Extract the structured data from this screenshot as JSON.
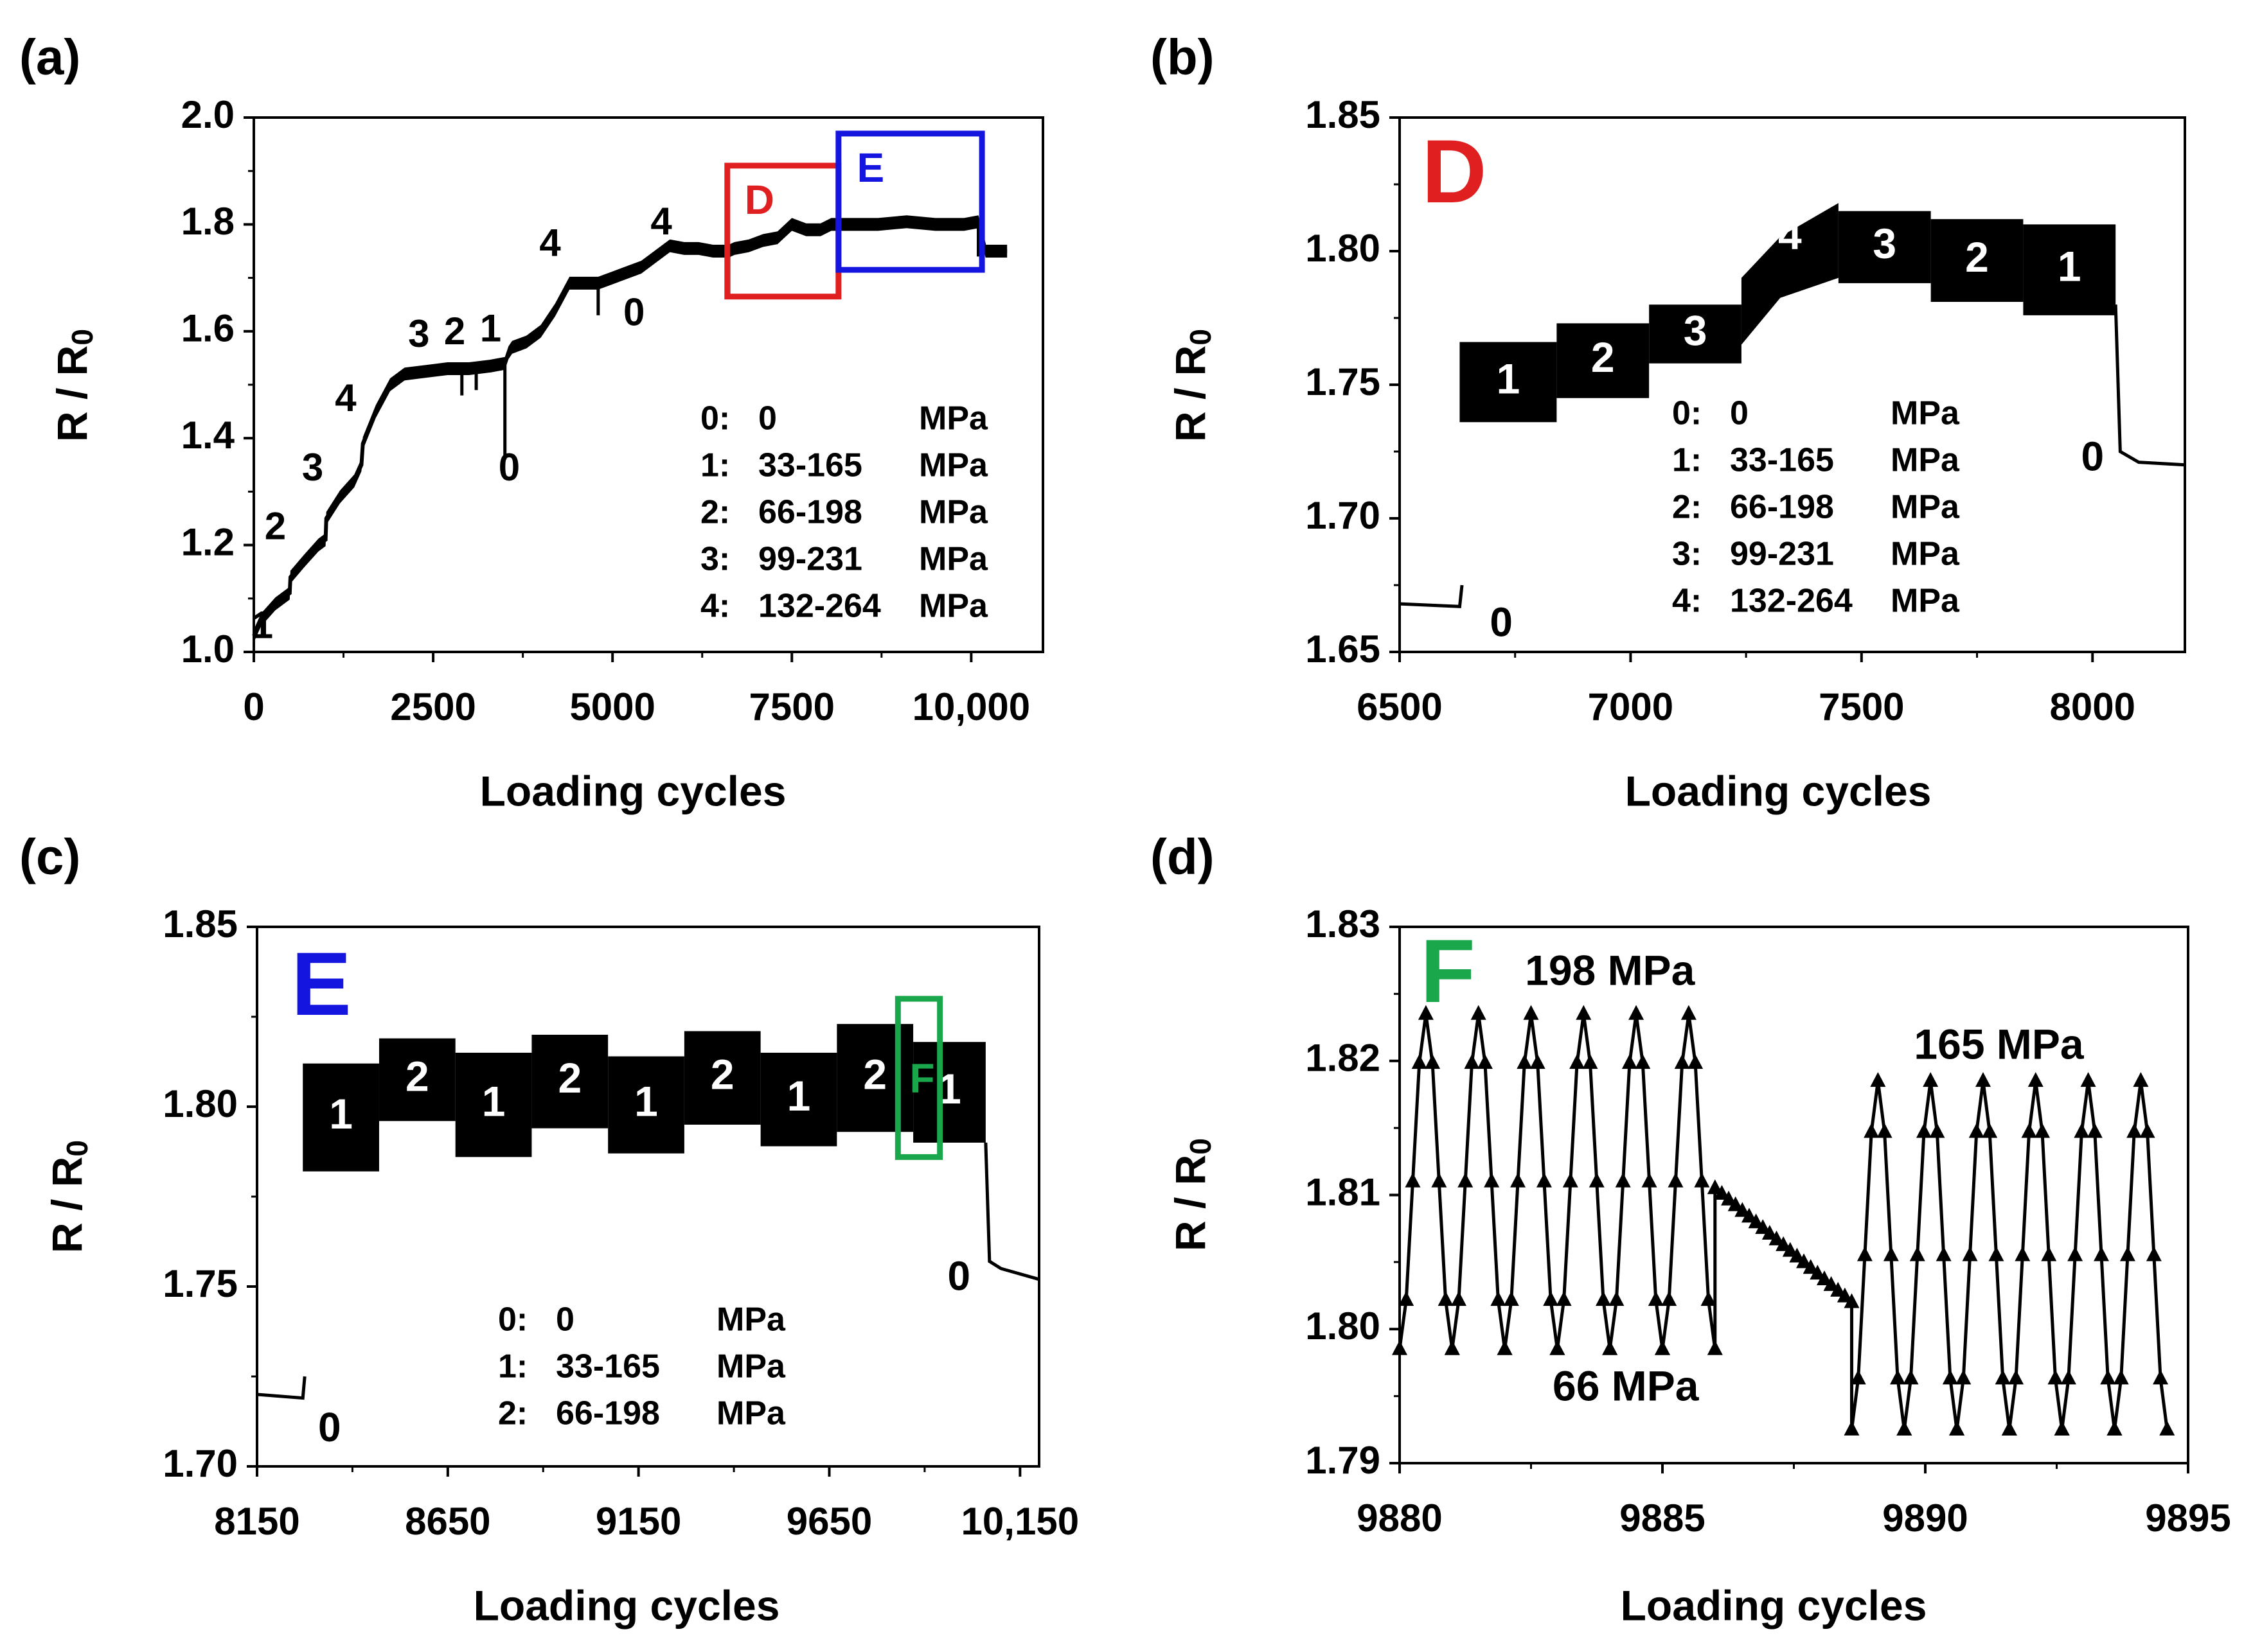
{
  "chart_data": [
    {
      "panel": "(a)",
      "type": "line",
      "title": "",
      "xlabel": "Loading cycles",
      "ylabel": "R / R0",
      "xlim": [
        0,
        11000
      ],
      "ylim": [
        1.0,
        2.0
      ],
      "xticks": [
        0,
        2500,
        5000,
        7500,
        10000
      ],
      "xtick_labels": [
        "0",
        "2500",
        "5000",
        "7500",
        "10,000"
      ],
      "yticks": [
        1.0,
        1.2,
        1.4,
        1.6,
        1.8,
        2.0
      ],
      "ytick_labels": [
        "1.0",
        "1.2",
        "1.4",
        "1.6",
        "1.8",
        "2.0"
      ],
      "series": [
        {
          "name": "R/R0 trace",
          "x": [
            0,
            100,
            300,
            500,
            510,
            700,
            900,
            1000,
            1010,
            1200,
            1400,
            1500,
            1520,
            1700,
            1900,
            2100,
            2400,
            2700,
            3000,
            3300,
            3500,
            3550,
            3600,
            3800,
            4000,
            4200,
            4400,
            4600,
            4800,
            5000,
            5200,
            5400,
            5600,
            5800,
            6000,
            6200,
            6400,
            6620,
            6700,
            6900,
            7100,
            7300,
            7500,
            7700,
            7900,
            8050,
            8300,
            8700,
            9100,
            9500,
            9900,
            10100,
            10200,
            10500
          ],
          "y": [
            1.03,
            1.06,
            1.09,
            1.11,
            1.14,
            1.17,
            1.2,
            1.21,
            1.25,
            1.29,
            1.32,
            1.35,
            1.39,
            1.45,
            1.5,
            1.52,
            1.525,
            1.53,
            1.53,
            1.535,
            1.54,
            1.56,
            1.57,
            1.58,
            1.6,
            1.64,
            1.69,
            1.69,
            1.69,
            1.7,
            1.71,
            1.72,
            1.74,
            1.76,
            1.755,
            1.755,
            1.75,
            1.75,
            1.755,
            1.76,
            1.77,
            1.775,
            1.8,
            1.79,
            1.79,
            1.8,
            1.8,
            1.8,
            1.805,
            1.8,
            1.8,
            1.805,
            1.75,
            1.75
          ]
        }
      ],
      "band_half_width": 0.012,
      "annotations": [
        {
          "text": "1",
          "x": 120,
          "y": 1.045
        },
        {
          "text": "2",
          "x": 300,
          "y": 1.23
        },
        {
          "text": "3",
          "x": 820,
          "y": 1.34
        },
        {
          "text": "4",
          "x": 1280,
          "y": 1.47
        },
        {
          "text": "3",
          "x": 2300,
          "y": 1.59
        },
        {
          "text": "2",
          "x": 2800,
          "y": 1.595
        },
        {
          "text": "1",
          "x": 3300,
          "y": 1.6
        },
        {
          "text": "0",
          "x": 3560,
          "y": 1.34
        },
        {
          "text": "4",
          "x": 4130,
          "y": 1.76
        },
        {
          "text": "0",
          "x": 5300,
          "y": 1.63
        },
        {
          "text": "4",
          "x": 5680,
          "y": 1.8
        }
      ],
      "zoom_boxes": [
        {
          "label": "D",
          "x0": 6600,
          "x1": 8150,
          "y0": 1.665,
          "y1": 1.91,
          "color": "#e02020"
        },
        {
          "label": "E",
          "x0": 8150,
          "x1": 10150,
          "y0": 1.715,
          "y1": 1.97,
          "color": "#1515e0"
        }
      ],
      "legend": [
        "0:  0            MPa",
        "1:  33-165    MPa",
        "2:  66-198    MPa",
        "3:  99-231    MPa",
        "4:  132-264 MPa"
      ]
    },
    {
      "panel": "(b)",
      "type": "line",
      "title": "",
      "inset_label": "D",
      "xlabel": "Loading cycles",
      "ylabel": "R / R0",
      "xlim": [
        6500,
        8200
      ],
      "ylim": [
        1.65,
        1.85
      ],
      "xticks": [
        6500,
        7000,
        7500,
        8000
      ],
      "xtick_labels": [
        "6500",
        "7000",
        "7500",
        "8000"
      ],
      "yticks": [
        1.65,
        1.7,
        1.75,
        1.8,
        1.85
      ],
      "ytick_labels": [
        "1.65",
        "1.70",
        "1.75",
        "1.80",
        "1.85"
      ],
      "baseline": {
        "x": [
          6500,
          6630,
          6635
        ],
        "y": [
          1.668,
          1.667,
          1.675
        ]
      },
      "tail": {
        "x": [
          8050,
          8060,
          8100,
          8200
        ],
        "y": [
          1.78,
          1.725,
          1.721,
          1.72
        ]
      },
      "blocks": [
        {
          "label": "1",
          "x0": 6630,
          "x1": 6840,
          "lo": 1.736,
          "hi": 1.766
        },
        {
          "label": "2",
          "x0": 6840,
          "x1": 7040,
          "lo": 1.745,
          "hi": 1.773
        },
        {
          "label": "3",
          "x0": 7040,
          "x1": 7240,
          "lo": 1.758,
          "hi": 1.78
        },
        {
          "label": "4",
          "x0": 7240,
          "x1": 7450,
          "lo_start": 1.765,
          "lo_end": 1.79,
          "hi_start": 1.79,
          "hi_end": 1.818
        },
        {
          "label": "3",
          "x0": 7450,
          "x1": 7650,
          "lo": 1.788,
          "hi": 1.815
        },
        {
          "label": "2",
          "x0": 7650,
          "x1": 7850,
          "lo": 1.781,
          "hi": 1.812
        },
        {
          "label": "1",
          "x0": 7850,
          "x1": 8050,
          "lo": 1.776,
          "hi": 1.81
        }
      ],
      "annotations": [
        {
          "text": "0",
          "x": 6720,
          "y": 1.66
        },
        {
          "text": "0",
          "x": 8000,
          "y": 1.722
        }
      ],
      "legend": [
        "0:  0            MPa",
        "1:  33-165    MPa",
        "2:  66-198    MPa",
        "3:  99-231    MPa",
        "4:  132-264 MPa"
      ]
    },
    {
      "panel": "(c)",
      "type": "line",
      "title": "",
      "inset_label": "E",
      "xlabel": "Loading cycles",
      "ylabel": "R / R0",
      "xlim": [
        8150,
        10200
      ],
      "ylim": [
        1.7,
        1.85
      ],
      "xticks": [
        8150,
        8650,
        9150,
        9650,
        10150
      ],
      "xtick_labels": [
        "8150",
        "8650",
        "9150",
        "9650",
        "10,150"
      ],
      "yticks": [
        1.7,
        1.75,
        1.8,
        1.85
      ],
      "ytick_labels": [
        "1.70",
        "1.75",
        "1.80",
        "1.85"
      ],
      "baseline": {
        "x": [
          8150,
          8270,
          8275
        ],
        "y": [
          1.72,
          1.719,
          1.725
        ]
      },
      "tail": {
        "x": [
          10060,
          10070,
          10100,
          10200
        ],
        "y": [
          1.79,
          1.757,
          1.755,
          1.752
        ]
      },
      "blocks": [
        {
          "label": "1",
          "x0": 8270,
          "x1": 8470,
          "lo": 1.782,
          "hi": 1.812
        },
        {
          "label": "2",
          "x0": 8470,
          "x1": 8670,
          "lo": 1.796,
          "hi": 1.819
        },
        {
          "label": "1",
          "x0": 8670,
          "x1": 8870,
          "lo": 1.786,
          "hi": 1.815
        },
        {
          "label": "2",
          "x0": 8870,
          "x1": 9070,
          "lo": 1.794,
          "hi": 1.82
        },
        {
          "label": "1",
          "x0": 9070,
          "x1": 9270,
          "lo": 1.787,
          "hi": 1.814
        },
        {
          "label": "2",
          "x0": 9270,
          "x1": 9470,
          "lo": 1.795,
          "hi": 1.821
        },
        {
          "label": "1",
          "x0": 9470,
          "x1": 9670,
          "lo": 1.789,
          "hi": 1.815
        },
        {
          "label": "2",
          "x0": 9670,
          "x1": 9870,
          "lo": 1.793,
          "hi": 1.823
        },
        {
          "label": "1",
          "x0": 9870,
          "x1": 10060,
          "lo": 1.79,
          "hi": 1.818
        }
      ],
      "block_label_values": {
        "F": ""
      },
      "annotations": [
        {
          "text": "0",
          "x": 8340,
          "y": 1.71
        },
        {
          "text": "0",
          "x": 9990,
          "y": 1.752
        }
      ],
      "zoom_boxes": [
        {
          "label": "F",
          "x0": 9830,
          "x1": 9940,
          "y0": 1.786,
          "y1": 1.83,
          "color": "#1aa64a"
        }
      ],
      "legend": [
        "0:  0            MPa",
        "1:  33-165    MPa",
        "2:  66-198    MPa"
      ]
    },
    {
      "panel": "(d)",
      "type": "line",
      "title": "",
      "inset_label": "F",
      "xlabel": "Loading cycles",
      "ylabel": "R / R0",
      "xlim": [
        9880,
        9895
      ],
      "ylim": [
        1.79,
        1.83
      ],
      "xticks": [
        9880,
        9885,
        9890,
        9895
      ],
      "xtick_labels": [
        "9880",
        "9885",
        "9890",
        "9895"
      ],
      "yticks": [
        1.79,
        1.8,
        1.81,
        1.82,
        1.83
      ],
      "ytick_labels": [
        "1.79",
        "1.80",
        "1.81",
        "1.82",
        "1.83"
      ],
      "segments": [
        {
          "x_start": 9880.0,
          "x_end": 9886.0,
          "period": 1.0,
          "lo": 1.7985,
          "hi": 1.8235,
          "start_phase": "lo"
        },
        {
          "x_start": 9886.0,
          "x_end": 9888.6,
          "ramp_from": 1.8105,
          "ramp_to": 1.802
        },
        {
          "x_start": 9888.6,
          "x_end": 9895.0,
          "period": 1.0,
          "lo": 1.7925,
          "hi": 1.8185,
          "start_phase": "lo"
        }
      ],
      "annotations": [
        {
          "text": "198 MPa",
          "x": 9884.0,
          "y": 1.8265
        },
        {
          "text": "66 MPa",
          "x": 9884.3,
          "y": 1.7955
        },
        {
          "text": "165 MPa",
          "x": 9891.4,
          "y": 1.821
        }
      ]
    }
  ],
  "panels": {
    "a": {
      "tag": "(a)"
    },
    "b": {
      "tag": "(b)"
    },
    "c": {
      "tag": "(c)"
    },
    "d": {
      "tag": "(d)"
    }
  }
}
